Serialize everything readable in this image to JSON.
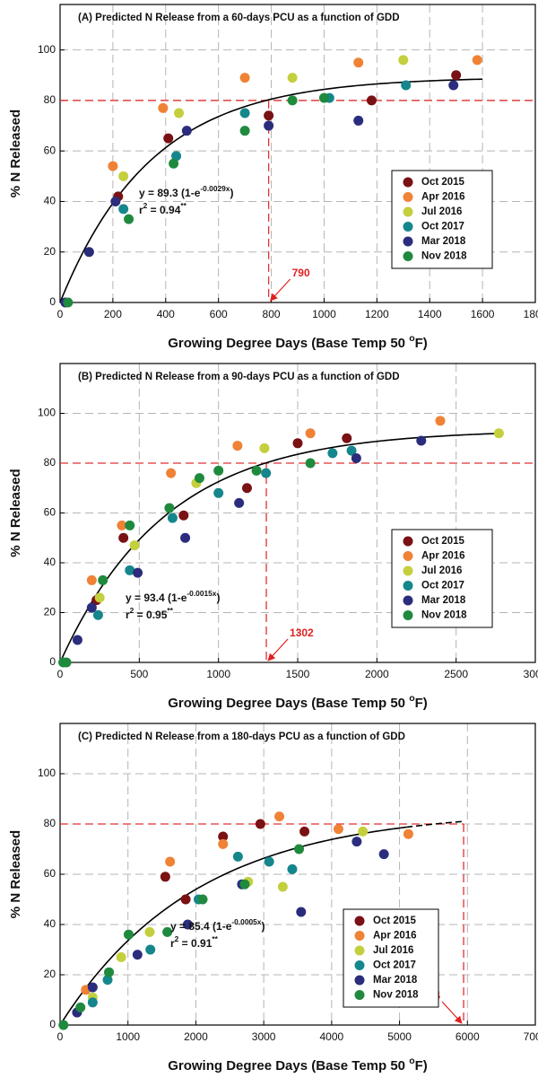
{
  "chart_data": [
    {
      "type": "scatter",
      "title": "(A)  Predicted N Release from a 60-days PCU as a function of GDD",
      "x_label": [
        {
          "text": "Growing Degree Days (Base Temp 50 "
        },
        {
          "text": "o",
          "sup": true
        },
        {
          "text": "F)"
        }
      ],
      "y_label": "% N Released",
      "xlim": [
        0,
        1800
      ],
      "xticks": [
        0,
        200,
        400,
        600,
        800,
        1000,
        1200,
        1400,
        1600,
        1800
      ],
      "ylim": [
        0,
        118
      ],
      "yticks": [
        0,
        20,
        40,
        60,
        80,
        100
      ],
      "grid": true,
      "legend_position": "right",
      "series": [
        {
          "name": "Oct 2015",
          "color": "#7a1114",
          "x": [
            220,
            410,
            790,
            1180,
            1500
          ],
          "values": [
            42,
            65,
            74,
            80,
            90
          ]
        },
        {
          "name": "Apr 2016",
          "color": "#f08236",
          "x": [
            200,
            390,
            700,
            1130,
            1580
          ],
          "values": [
            54,
            77,
            89,
            95,
            96
          ]
        },
        {
          "name": "Jul 2016",
          "color": "#c4cf3e",
          "x": [
            240,
            450,
            880,
            1300
          ],
          "values": [
            50,
            75,
            89,
            96
          ]
        },
        {
          "name": "Oct 2017",
          "color": "#15878c",
          "x": [
            240,
            440,
            700,
            1020,
            1310
          ],
          "values": [
            37,
            58,
            75,
            81,
            86
          ]
        },
        {
          "name": "Mar 2018",
          "color": "#2b2d7c",
          "x": [
            20,
            110,
            210,
            480,
            790,
            1130,
            1490
          ],
          "values": [
            0,
            20,
            40,
            68,
            70,
            72,
            86
          ]
        },
        {
          "name": "Nov 2018",
          "color": "#1f8a3e",
          "x": [
            30,
            260,
            430,
            700,
            880,
            1000
          ],
          "values": [
            0,
            33,
            55,
            68,
            80,
            81
          ]
        }
      ],
      "fit": {
        "a": 89.3,
        "k": -0.0029,
        "x_range": [
          0,
          1600
        ]
      },
      "equation": [
        {
          "text": "y = 89.3 (1-e"
        },
        {
          "text": "-0.0029x",
          "sup": true
        },
        {
          "text": ")"
        }
      ],
      "r2": [
        {
          "text": "r"
        },
        {
          "text": "2",
          "sup": true
        },
        {
          "text": " = 0.94"
        },
        {
          "text": "**",
          "sup": true
        }
      ],
      "reference": {
        "y": 80,
        "x": 790,
        "h_line_to_x": false
      }
    },
    {
      "type": "scatter",
      "title": "(B)   Predicted N Release from a 90-days PCU as a function of GDD",
      "x_label": [
        {
          "text": "Growing Degree Days (Base Temp 50 "
        },
        {
          "text": "o",
          "sup": true
        },
        {
          "text": "F)"
        }
      ],
      "y_label": "% N Released",
      "xlim": [
        0,
        3000
      ],
      "xticks": [
        0,
        500,
        1000,
        1500,
        2000,
        2500,
        3000
      ],
      "ylim": [
        0,
        120
      ],
      "yticks": [
        0,
        20,
        40,
        60,
        80,
        100
      ],
      "grid": true,
      "legend_position": "right",
      "series": [
        {
          "name": "Oct 2015",
          "color": "#7a1114",
          "x": [
            230,
            400,
            780,
            1180,
            1500,
            1810
          ],
          "values": [
            25,
            50,
            59,
            70,
            88,
            90
          ]
        },
        {
          "name": "Apr 2016",
          "color": "#f08236",
          "x": [
            200,
            390,
            700,
            1120,
            1580,
            2400
          ],
          "values": [
            33,
            55,
            76,
            87,
            92,
            97
          ]
        },
        {
          "name": "Jul 2016",
          "color": "#c4cf3e",
          "x": [
            250,
            470,
            860,
            1290,
            2770
          ],
          "values": [
            26,
            47,
            72,
            86,
            92
          ]
        },
        {
          "name": "Oct 2017",
          "color": "#15878c",
          "x": [
            240,
            440,
            710,
            1000,
            1300,
            1720,
            1840
          ],
          "values": [
            19,
            37,
            58,
            68,
            76,
            84,
            85
          ]
        },
        {
          "name": "Mar 2018",
          "color": "#2b2d7c",
          "x": [
            110,
            200,
            490,
            790,
            1130,
            1870,
            2280
          ],
          "values": [
            9,
            22,
            36,
            50,
            64,
            82,
            89
          ]
        },
        {
          "name": "Nov 2018",
          "color": "#1f8a3e",
          "x": [
            20,
            40,
            270,
            440,
            690,
            880,
            1000,
            1240,
            1580
          ],
          "values": [
            0,
            0,
            33,
            55,
            62,
            74,
            77,
            77,
            80
          ]
        }
      ],
      "fit": {
        "a": 93.4,
        "k": -0.0015,
        "x_range": [
          0,
          2770
        ]
      },
      "equation": [
        {
          "text": "y = 93.4 (1-e"
        },
        {
          "text": "-0.0015x",
          "sup": true
        },
        {
          "text": ")"
        }
      ],
      "r2": [
        {
          "text": "r"
        },
        {
          "text": "2",
          "sup": true
        },
        {
          "text": " = 0.95"
        },
        {
          "text": "**",
          "sup": true
        }
      ],
      "reference": {
        "y": 80,
        "x": 1302,
        "h_line_to_x": false
      }
    },
    {
      "type": "scatter",
      "title": "(C)   Predicted N Release from a 180-days PCU as a function of GDD",
      "x_label": [
        {
          "text": "Growing Degree Days (Base Temp 50 "
        },
        {
          "text": "o",
          "sup": true
        },
        {
          "text": "F)"
        }
      ],
      "y_label": "% N Released",
      "xlim": [
        0,
        7000
      ],
      "xticks": [
        0,
        1000,
        2000,
        3000,
        4000,
        5000,
        6000,
        7000
      ],
      "ylim": [
        0,
        120
      ],
      "yticks": [
        0,
        20,
        40,
        60,
        80,
        100
      ],
      "grid": true,
      "legend_position": "lower-center-right",
      "series": [
        {
          "name": "Oct 2015",
          "color": "#7a1114",
          "x": [
            1550,
            1850,
            2400,
            2950,
            3600
          ],
          "values": [
            59,
            50,
            75,
            80,
            77
          ]
        },
        {
          "name": "Apr 2016",
          "color": "#f08236",
          "x": [
            380,
            1620,
            2400,
            3230,
            4100,
            5130
          ],
          "values": [
            14,
            65,
            72,
            83,
            78,
            76
          ]
        },
        {
          "name": "Jul 2016",
          "color": "#c4cf3e",
          "x": [
            250,
            480,
            900,
            1320,
            2770,
            3280,
            4460
          ],
          "values": [
            5,
            11,
            27,
            37,
            57,
            55,
            77
          ]
        },
        {
          "name": "Oct 2017",
          "color": "#15878c",
          "x": [
            480,
            700,
            1330,
            2040,
            2620,
            3080,
            3420
          ],
          "values": [
            9,
            18,
            30,
            50,
            67,
            65,
            62
          ]
        },
        {
          "name": "Mar 2018",
          "color": "#2b2d7c",
          "x": [
            250,
            480,
            1140,
            1880,
            2680,
            3550,
            4370,
            4770
          ],
          "values": [
            5,
            15,
            28,
            40,
            56,
            45,
            73,
            68
          ]
        },
        {
          "name": "Nov 2018",
          "color": "#1f8a3e",
          "x": [
            50,
            300,
            720,
            1010,
            1580,
            2100,
            2720,
            3520
          ],
          "values": [
            0,
            7,
            21,
            36,
            37,
            50,
            56,
            70
          ]
        }
      ],
      "fit": {
        "a": 85.4,
        "k": -0.0005,
        "x_range": [
          0,
          5944
        ],
        "dashed_from": 5100
      },
      "equation": [
        {
          "text": "y = 85.4 (1-e"
        },
        {
          "text": "-0.0005x",
          "sup": true
        },
        {
          "text": ")"
        }
      ],
      "r2": [
        {
          "text": "r"
        },
        {
          "text": "2",
          "sup": true
        },
        {
          "text": " = 0.91"
        },
        {
          "text": "**",
          "sup": true
        }
      ],
      "reference": {
        "y": 80,
        "x": 5944,
        "h_line_to_x": true
      }
    }
  ]
}
